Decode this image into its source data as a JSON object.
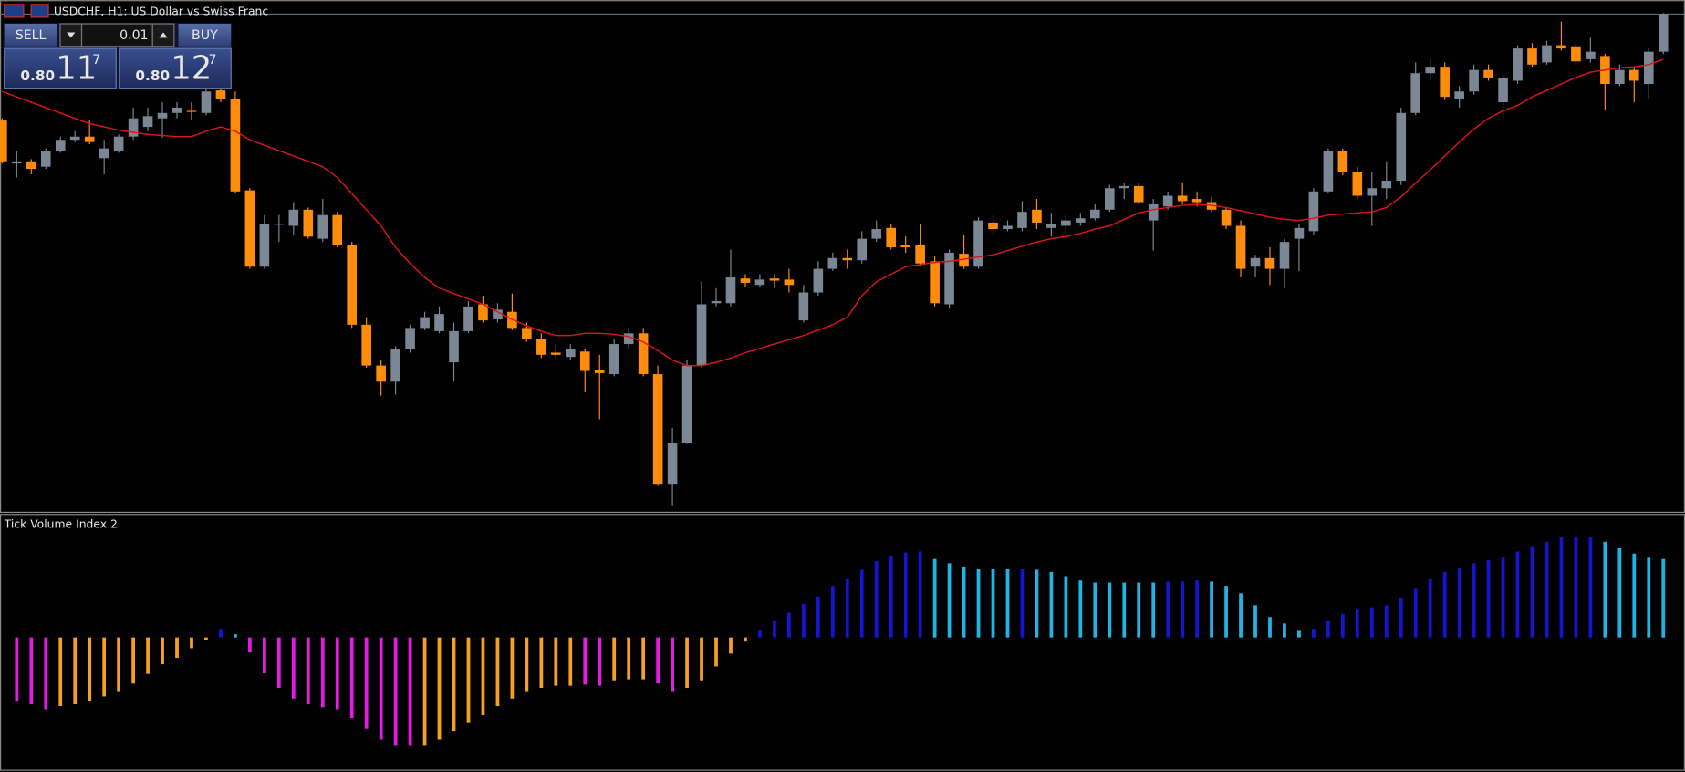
{
  "trade_panel": {
    "sell": "SELL",
    "buy": "BUY",
    "lot": "0.01",
    "bid": {
      "big_figure": "0.80",
      "pips": "11",
      "fraction": "7"
    },
    "ask": {
      "big_figure": "0.80",
      "pips": "12",
      "fraction": "7"
    }
  },
  "chart_data": [
    {
      "type": "candlestick",
      "title": "USDCHF, H1:  US Dollar vs Swiss Franc",
      "up_color": "#7b8795",
      "down_color": "#ff8c0a",
      "ylim": [
        0,
        462
      ],
      "ohlc": [
        [
          363,
          365,
          323,
          325
        ],
        [
          323,
          335,
          310,
          325
        ],
        [
          325,
          327,
          313,
          318
        ],
        [
          320,
          337,
          318,
          335
        ],
        [
          335,
          348,
          333,
          345
        ],
        [
          345,
          353,
          343,
          348
        ],
        [
          348,
          363,
          341,
          343
        ],
        [
          328,
          345,
          313,
          337
        ],
        [
          335,
          350,
          333,
          348
        ],
        [
          348,
          375,
          345,
          365
        ],
        [
          357,
          375,
          353,
          367
        ],
        [
          365,
          380,
          347,
          370
        ],
        [
          370,
          380,
          365,
          375
        ],
        [
          372,
          380,
          363,
          371
        ],
        [
          370,
          395,
          368,
          390
        ],
        [
          391,
          395,
          380,
          383
        ],
        [
          383,
          390,
          295,
          297
        ],
        [
          298,
          300,
          225,
          227
        ],
        [
          227,
          275,
          225,
          267
        ],
        [
          266,
          275,
          250,
          267
        ],
        [
          265,
          287,
          257,
          280
        ],
        [
          280,
          282,
          253,
          255
        ],
        [
          253,
          290,
          250,
          275
        ],
        [
          275,
          278,
          245,
          247
        ],
        [
          247,
          250,
          170,
          173
        ],
        [
          173,
          180,
          133,
          135
        ],
        [
          135,
          140,
          107,
          120
        ],
        [
          120,
          153,
          108,
          150
        ],
        [
          150,
          173,
          147,
          170
        ],
        [
          170,
          185,
          168,
          180
        ],
        [
          167,
          190,
          165,
          183
        ],
        [
          138,
          175,
          120,
          167
        ],
        [
          167,
          195,
          165,
          190
        ],
        [
          192,
          200,
          175,
          177
        ],
        [
          178,
          193,
          175,
          187
        ],
        [
          185,
          202,
          168,
          170
        ],
        [
          170,
          175,
          157,
          160
        ],
        [
          160,
          165,
          142,
          145
        ],
        [
          147,
          155,
          142,
          145
        ],
        [
          143,
          155,
          140,
          150
        ],
        [
          148,
          150,
          110,
          130
        ],
        [
          131,
          145,
          85,
          128
        ],
        [
          127,
          160,
          125,
          155
        ],
        [
          155,
          170,
          150,
          165
        ],
        [
          165,
          170,
          125,
          127
        ],
        [
          127,
          135,
          23,
          25
        ],
        [
          25,
          77,
          5,
          63
        ],
        [
          63,
          140,
          62,
          135
        ],
        [
          135,
          213,
          133,
          192
        ],
        [
          193,
          207,
          190,
          195
        ],
        [
          193,
          243,
          190,
          217
        ],
        [
          216,
          220,
          208,
          212
        ],
        [
          210,
          220,
          208,
          215
        ],
        [
          216,
          220,
          207,
          214
        ],
        [
          215,
          225,
          203,
          210
        ],
        [
          177,
          210,
          175,
          203
        ],
        [
          203,
          232,
          200,
          225
        ],
        [
          225,
          240,
          223,
          235
        ],
        [
          235,
          243,
          225,
          233
        ],
        [
          233,
          260,
          230,
          253
        ],
        [
          253,
          270,
          250,
          262
        ],
        [
          263,
          267,
          243,
          245
        ],
        [
          247,
          255,
          240,
          245
        ],
        [
          247,
          267,
          228,
          230
        ],
        [
          232,
          237,
          190,
          193
        ],
        [
          192,
          243,
          188,
          240
        ],
        [
          239,
          257,
          225,
          227
        ],
        [
          227,
          273,
          225,
          270
        ],
        [
          268,
          275,
          257,
          262
        ],
        [
          262,
          270,
          260,
          265
        ],
        [
          263,
          288,
          260,
          278
        ],
        [
          280,
          290,
          262,
          268
        ],
        [
          263,
          277,
          255,
          267
        ],
        [
          265,
          275,
          257,
          270
        ],
        [
          268,
          277,
          265,
          272
        ],
        [
          272,
          285,
          270,
          280
        ],
        [
          280,
          303,
          278,
          300
        ],
        [
          300,
          305,
          290,
          302
        ],
        [
          302,
          305,
          285,
          287
        ],
        [
          270,
          290,
          242,
          285
        ],
        [
          283,
          297,
          280,
          293
        ],
        [
          293,
          305,
          285,
          288
        ],
        [
          290,
          297,
          283,
          287
        ],
        [
          287,
          292,
          278,
          280
        ],
        [
          280,
          282,
          262,
          265
        ],
        [
          265,
          270,
          217,
          225
        ],
        [
          227,
          238,
          217,
          235
        ],
        [
          235,
          245,
          210,
          225
        ],
        [
          225,
          253,
          207,
          250
        ],
        [
          253,
          267,
          223,
          263
        ],
        [
          260,
          300,
          257,
          297
        ],
        [
          297,
          337,
          295,
          335
        ],
        [
          335,
          337,
          312,
          315
        ],
        [
          315,
          320,
          290,
          293
        ],
        [
          293,
          315,
          265,
          300
        ],
        [
          300,
          325,
          290,
          307
        ],
        [
          307,
          375,
          303,
          370
        ],
        [
          370,
          417,
          368,
          407
        ],
        [
          407,
          420,
          400,
          413
        ],
        [
          413,
          417,
          382,
          385
        ],
        [
          383,
          395,
          375,
          390
        ],
        [
          390,
          415,
          387,
          410
        ],
        [
          410,
          415,
          400,
          403
        ],
        [
          380,
          405,
          367,
          403
        ],
        [
          400,
          433,
          397,
          430
        ],
        [
          430,
          435,
          413,
          415
        ],
        [
          417,
          437,
          415,
          433
        ],
        [
          433,
          455,
          428,
          430
        ],
        [
          432,
          435,
          415,
          418
        ],
        [
          420,
          440,
          417,
          427
        ],
        [
          423,
          425,
          373,
          397
        ],
        [
          397,
          415,
          395,
          410
        ],
        [
          410,
          413,
          380,
          400
        ],
        [
          397,
          430,
          383,
          427
        ],
        [
          427,
          463,
          425,
          462
        ]
      ],
      "ma": {
        "color": "#e0141e",
        "values": [
          390,
          385,
          380,
          375,
          370,
          365,
          360,
          357,
          354,
          352,
          350,
          349,
          348,
          348,
          353,
          357,
          353,
          345,
          340,
          335,
          330,
          325,
          320,
          310,
          295,
          280,
          265,
          245,
          230,
          217,
          207,
          202,
          197,
          192,
          185,
          178,
          172,
          167,
          163,
          163,
          165,
          165,
          164,
          162,
          157,
          149,
          140,
          135,
          135,
          138,
          142,
          147,
          151,
          155,
          159,
          163,
          168,
          173,
          180,
          200,
          213,
          220,
          227,
          229,
          231,
          232,
          234,
          236,
          238,
          242,
          246,
          250,
          253,
          255,
          258,
          262,
          265,
          271,
          277,
          280,
          282,
          284,
          285,
          284,
          282,
          279,
          276,
          273,
          271,
          270,
          272,
          275,
          276,
          277,
          278,
          282,
          292,
          305,
          317,
          330,
          343,
          355,
          365,
          372,
          377,
          385,
          391,
          397,
          403,
          408,
          410,
          412,
          413,
          415,
          420
        ]
      }
    },
    {
      "type": "bar",
      "title": "Tick Volume Index 2",
      "ylim": [
        -123,
        114
      ],
      "values": [
        -59,
        -62,
        -67,
        -64,
        -62,
        -59,
        -55,
        -50,
        -43,
        -34,
        -25,
        -19,
        -10,
        -2,
        8,
        3,
        -14,
        -33,
        -47,
        -57,
        -62,
        -65,
        -67,
        -75,
        -85,
        -95,
        -100,
        -100,
        -100,
        -95,
        -87,
        -79,
        -72,
        -64,
        -57,
        -50,
        -47,
        -45,
        -45,
        -44,
        -45,
        -40,
        -39,
        -39,
        -42,
        -50,
        -47,
        -40,
        -27,
        -15,
        -3,
        7,
        16,
        23,
        31,
        38,
        48,
        55,
        63,
        71,
        76,
        79,
        80,
        73,
        69,
        66,
        64,
        64,
        64,
        64,
        63,
        61,
        57,
        53,
        51,
        51,
        51,
        51,
        51,
        52,
        52,
        53,
        52,
        48,
        41,
        30,
        19,
        13,
        7,
        8,
        16,
        22,
        27,
        28,
        30,
        37,
        46,
        55,
        61,
        65,
        69,
        72,
        75,
        80,
        85,
        89,
        93,
        94,
        93,
        89,
        83,
        78,
        75,
        73
      ],
      "colors": [
        "#e619e6",
        "#e619e6",
        "#e619e6",
        "#f5a020",
        "#f5a020",
        "#f5a020",
        "#f5a020",
        "#f5a020",
        "#f5a020",
        "#f5a020",
        "#f5a020",
        "#f5a020",
        "#f5a020",
        "#f5a020",
        "#1414d2",
        "#1fb4e6",
        "#e619e6",
        "#e619e6",
        "#e619e6",
        "#e619e6",
        "#e619e6",
        "#e619e6",
        "#e619e6",
        "#e619e6",
        "#e619e6",
        "#e619e6",
        "#e619e6",
        "#e619e6",
        "#f5a020",
        "#f5a020",
        "#f5a020",
        "#f5a020",
        "#f5a020",
        "#f5a020",
        "#f5a020",
        "#f5a020",
        "#f5a020",
        "#f5a020",
        "#f5a020",
        "#e619e6",
        "#e619e6",
        "#f5a020",
        "#f5a020",
        "#f5a020",
        "#e619e6",
        "#e619e6",
        "#f5a020",
        "#f5a020",
        "#f5a020",
        "#f5a020",
        "#f5a020",
        "#1414d2",
        "#1414d2",
        "#1414d2",
        "#1414d2",
        "#1414d2",
        "#1414d2",
        "#1414d2",
        "#1414d2",
        "#1414d2",
        "#1414d2",
        "#1414d2",
        "#1414d2",
        "#1fb4e6",
        "#1fb4e6",
        "#1fb4e6",
        "#1fb4e6",
        "#1fb4e6",
        "#1fb4e6",
        "#1414d2",
        "#1fb4e6",
        "#1fb4e6",
        "#1fb4e6",
        "#1fb4e6",
        "#1fb4e6",
        "#1fb4e6",
        "#1fb4e6",
        "#1fb4e6",
        "#1fb4e6",
        "#1414d2",
        "#1414d2",
        "#1414d2",
        "#1fb4e6",
        "#1fb4e6",
        "#1fb4e6",
        "#1fb4e6",
        "#1fb4e6",
        "#1fb4e6",
        "#1fb4e6",
        "#1414d2",
        "#1414d2",
        "#1414d2",
        "#1414d2",
        "#1414d2",
        "#1414d2",
        "#1414d2",
        "#1414d2",
        "#1414d2",
        "#1414d2",
        "#1414d2",
        "#1414d2",
        "#1414d2",
        "#1414d2",
        "#1414d2",
        "#1414d2",
        "#1414d2",
        "#1414d2",
        "#1414d2",
        "#1414d2",
        "#1fb4e6",
        "#1fb4e6",
        "#1fb4e6",
        "#1fb4e6",
        "#1fb4e6"
      ]
    }
  ]
}
